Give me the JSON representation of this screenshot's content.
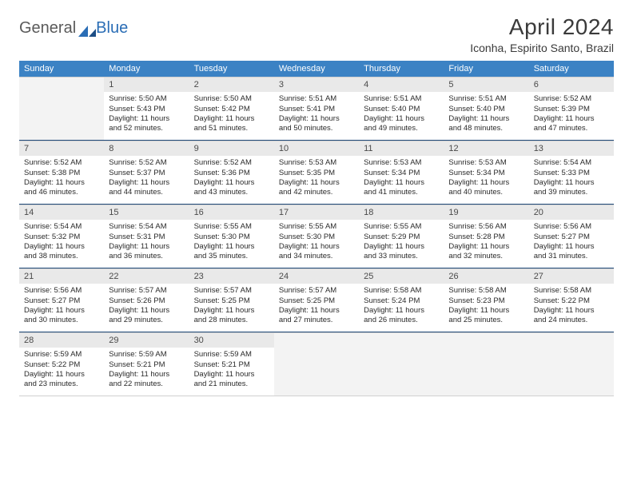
{
  "logo": {
    "text1": "General",
    "text2": "Blue"
  },
  "title": "April 2024",
  "location": "Iconha, Espirito Santo, Brazil",
  "colors": {
    "header_bg": "#3b82c4",
    "border_bottom": "#204a7a",
    "daynum_bg": "#e9e9e9",
    "empty_bg": "#f3f3f3"
  },
  "weekdays": [
    "Sunday",
    "Monday",
    "Tuesday",
    "Wednesday",
    "Thursday",
    "Friday",
    "Saturday"
  ],
  "weeks": [
    [
      null,
      {
        "d": "1",
        "sr": "5:50 AM",
        "ss": "5:43 PM",
        "dl": "11 hours and 52 minutes."
      },
      {
        "d": "2",
        "sr": "5:50 AM",
        "ss": "5:42 PM",
        "dl": "11 hours and 51 minutes."
      },
      {
        "d": "3",
        "sr": "5:51 AM",
        "ss": "5:41 PM",
        "dl": "11 hours and 50 minutes."
      },
      {
        "d": "4",
        "sr": "5:51 AM",
        "ss": "5:40 PM",
        "dl": "11 hours and 49 minutes."
      },
      {
        "d": "5",
        "sr": "5:51 AM",
        "ss": "5:40 PM",
        "dl": "11 hours and 48 minutes."
      },
      {
        "d": "6",
        "sr": "5:52 AM",
        "ss": "5:39 PM",
        "dl": "11 hours and 47 minutes."
      }
    ],
    [
      {
        "d": "7",
        "sr": "5:52 AM",
        "ss": "5:38 PM",
        "dl": "11 hours and 46 minutes."
      },
      {
        "d": "8",
        "sr": "5:52 AM",
        "ss": "5:37 PM",
        "dl": "11 hours and 44 minutes."
      },
      {
        "d": "9",
        "sr": "5:52 AM",
        "ss": "5:36 PM",
        "dl": "11 hours and 43 minutes."
      },
      {
        "d": "10",
        "sr": "5:53 AM",
        "ss": "5:35 PM",
        "dl": "11 hours and 42 minutes."
      },
      {
        "d": "11",
        "sr": "5:53 AM",
        "ss": "5:34 PM",
        "dl": "11 hours and 41 minutes."
      },
      {
        "d": "12",
        "sr": "5:53 AM",
        "ss": "5:34 PM",
        "dl": "11 hours and 40 minutes."
      },
      {
        "d": "13",
        "sr": "5:54 AM",
        "ss": "5:33 PM",
        "dl": "11 hours and 39 minutes."
      }
    ],
    [
      {
        "d": "14",
        "sr": "5:54 AM",
        "ss": "5:32 PM",
        "dl": "11 hours and 38 minutes."
      },
      {
        "d": "15",
        "sr": "5:54 AM",
        "ss": "5:31 PM",
        "dl": "11 hours and 36 minutes."
      },
      {
        "d": "16",
        "sr": "5:55 AM",
        "ss": "5:30 PM",
        "dl": "11 hours and 35 minutes."
      },
      {
        "d": "17",
        "sr": "5:55 AM",
        "ss": "5:30 PM",
        "dl": "11 hours and 34 minutes."
      },
      {
        "d": "18",
        "sr": "5:55 AM",
        "ss": "5:29 PM",
        "dl": "11 hours and 33 minutes."
      },
      {
        "d": "19",
        "sr": "5:56 AM",
        "ss": "5:28 PM",
        "dl": "11 hours and 32 minutes."
      },
      {
        "d": "20",
        "sr": "5:56 AM",
        "ss": "5:27 PM",
        "dl": "11 hours and 31 minutes."
      }
    ],
    [
      {
        "d": "21",
        "sr": "5:56 AM",
        "ss": "5:27 PM",
        "dl": "11 hours and 30 minutes."
      },
      {
        "d": "22",
        "sr": "5:57 AM",
        "ss": "5:26 PM",
        "dl": "11 hours and 29 minutes."
      },
      {
        "d": "23",
        "sr": "5:57 AM",
        "ss": "5:25 PM",
        "dl": "11 hours and 28 minutes."
      },
      {
        "d": "24",
        "sr": "5:57 AM",
        "ss": "5:25 PM",
        "dl": "11 hours and 27 minutes."
      },
      {
        "d": "25",
        "sr": "5:58 AM",
        "ss": "5:24 PM",
        "dl": "11 hours and 26 minutes."
      },
      {
        "d": "26",
        "sr": "5:58 AM",
        "ss": "5:23 PM",
        "dl": "11 hours and 25 minutes."
      },
      {
        "d": "27",
        "sr": "5:58 AM",
        "ss": "5:22 PM",
        "dl": "11 hours and 24 minutes."
      }
    ],
    [
      {
        "d": "28",
        "sr": "5:59 AM",
        "ss": "5:22 PM",
        "dl": "11 hours and 23 minutes."
      },
      {
        "d": "29",
        "sr": "5:59 AM",
        "ss": "5:21 PM",
        "dl": "11 hours and 22 minutes."
      },
      {
        "d": "30",
        "sr": "5:59 AM",
        "ss": "5:21 PM",
        "dl": "11 hours and 21 minutes."
      },
      null,
      null,
      null,
      null
    ]
  ],
  "labels": {
    "sunrise": "Sunrise:",
    "sunset": "Sunset:",
    "daylight": "Daylight:"
  }
}
